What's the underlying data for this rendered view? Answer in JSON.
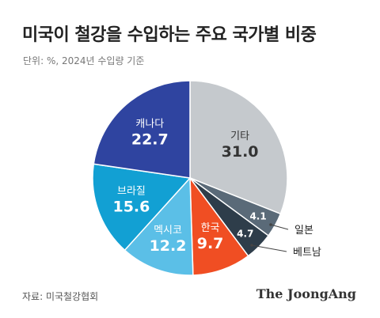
{
  "header": {
    "title": "미국이 철강을 수입하는 주요 국가별 비중",
    "subtitle": "단위: %, 2024년 수입량 기준"
  },
  "footer": {
    "source": "자료: 미국철강협회",
    "brand": "The JoongAng"
  },
  "chart_data": {
    "type": "pie",
    "title": "미국이 철강을 수입하는 주요 국가별 비중",
    "subtitle": "단위: %, 2024년 수입량 기준",
    "slices": [
      {
        "label": "기타",
        "value": 31.0,
        "display": "31.0",
        "color": "#c5c9cd",
        "text_color": "#333333"
      },
      {
        "label": "일본",
        "value": 4.1,
        "display": "4.1",
        "color": "#5a6a78",
        "text_color": "#ffffff",
        "outside_label": true
      },
      {
        "label": "베트남",
        "value": 4.7,
        "display": "4.7",
        "color": "#2e3d4a",
        "text_color": "#ffffff",
        "outside_label": true
      },
      {
        "label": "한국",
        "value": 9.7,
        "display": "9.7",
        "color": "#f04e23",
        "text_color": "#ffffff"
      },
      {
        "label": "멕시코",
        "value": 12.2,
        "display": "12.2",
        "color": "#5bbfe7",
        "text_color": "#ffffff"
      },
      {
        "label": "브라질",
        "value": 15.6,
        "display": "15.6",
        "color": "#12a0d3",
        "text_color": "#ffffff"
      },
      {
        "label": "캐나다",
        "value": 22.7,
        "display": "22.7",
        "color": "#2f44a0",
        "text_color": "#ffffff"
      }
    ],
    "start_angle": "12 o'clock",
    "direction": "clockwise",
    "legend": "none"
  }
}
